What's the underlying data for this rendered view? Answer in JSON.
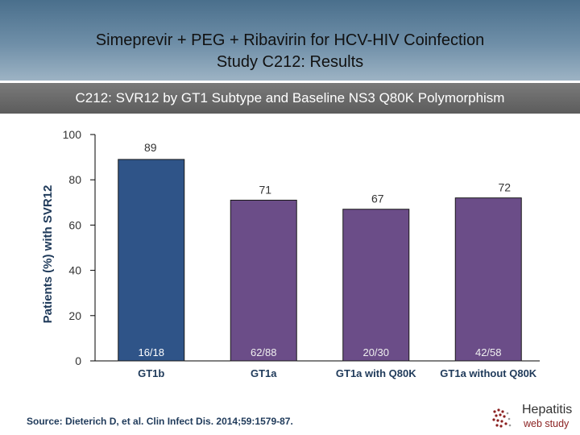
{
  "header": {
    "title_line1": "Simeprevir + PEG + Ribavirin for HCV-HIV Coinfection",
    "title_line2": "Study C212: Results",
    "subtitle": "C212: SVR12 by GT1 Subtype and Baseline NS3 Q80K Polymorphism"
  },
  "chart_data": {
    "type": "bar",
    "title": "C212: SVR12 by GT1 Subtype and Baseline NS3 Q80K Polymorphism",
    "ylabel": "Patients (%) with SVR12",
    "xlabel": "",
    "ylim": [
      0,
      100
    ],
    "yticks": [
      0,
      20,
      40,
      60,
      80,
      100
    ],
    "categories": [
      "GT1b",
      "GT1a",
      "GT1a with Q80K",
      "GT1a without Q80K"
    ],
    "values": [
      89,
      71,
      67,
      72
    ],
    "fractions": [
      "16/18",
      "62/88",
      "20/30",
      "42/58"
    ],
    "colors": [
      "#2f5488",
      "#6b4d88",
      "#6b4d88",
      "#6b4d88"
    ],
    "grid": false,
    "legend": "none"
  },
  "footer": {
    "source": "Source: Dieterich D, et al. Clin Infect Dis. 2014;59:1579-87.",
    "logo_title": "Hepatitis",
    "logo_subtitle": "web study"
  }
}
